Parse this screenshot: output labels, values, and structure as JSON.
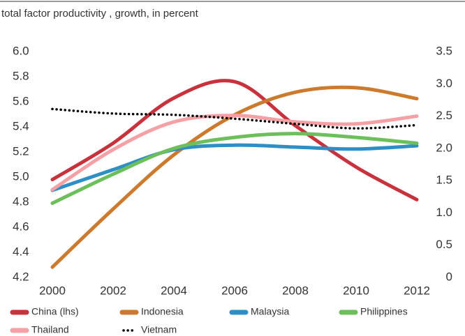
{
  "chart_data": {
    "type": "line",
    "subtitle": "total factor productivity , growth, in percent",
    "x": [
      2000,
      2002,
      2004,
      2006,
      2008,
      2010,
      2012
    ],
    "xlim": [
      2000,
      2012
    ],
    "xticks": [
      2000,
      2002,
      2004,
      2006,
      2008,
      2010,
      2012
    ],
    "ylim": [
      4.2,
      6.0
    ],
    "yticks": [
      {
        "value": 4.2,
        "label": "4.2"
      },
      {
        "value": 4.4,
        "label": "4.4"
      },
      {
        "value": 4.6,
        "label": "4.6"
      },
      {
        "value": 4.8,
        "label": "4.8"
      },
      {
        "value": 5.0,
        "label": "5.0"
      },
      {
        "value": 5.2,
        "label": "5.2"
      },
      {
        "value": 5.4,
        "label": "5.4"
      },
      {
        "value": 5.6,
        "label": "5.6"
      },
      {
        "value": 5.8,
        "label": "5.8"
      },
      {
        "value": 6.0,
        "label": "6.0"
      }
    ],
    "y2lim": [
      0,
      3.5
    ],
    "y2ticks": [
      0,
      {
        "value": 0.5,
        "label": "0.5"
      },
      {
        "value": 1.0,
        "label": "1.0"
      },
      {
        "value": 1.5,
        "label": "1.5"
      },
      {
        "value": 2.0,
        "label": "2.0"
      },
      {
        "value": 2.5,
        "label": "2.5"
      },
      {
        "value": 3.0,
        "label": "3.0"
      },
      {
        "value": 3.5,
        "label": "3.5"
      }
    ],
    "grid": false,
    "smooth": true,
    "series": [
      {
        "name": "China (lhs)",
        "color": "#c8323c",
        "values": [
          4.98,
          5.27,
          5.63,
          5.76,
          5.41,
          5.08,
          4.82
        ]
      },
      {
        "name": "Indonesia",
        "color": "#cc7a2e",
        "axis": "y2",
        "values": [
          0.16,
          1.06,
          1.9,
          2.52,
          2.87,
          2.94,
          2.77
        ]
      },
      {
        "name": "Malaysia",
        "color": "#2e8fc6",
        "axis": "y2",
        "values": [
          1.35,
          1.67,
          1.98,
          2.05,
          2.02,
          1.99,
          2.04
        ]
      },
      {
        "name": "Philippines",
        "color": "#6cbf5a",
        "axis": "y2",
        "values": [
          1.15,
          1.6,
          2.0,
          2.17,
          2.23,
          2.17,
          2.08
        ]
      },
      {
        "name": "Thailand",
        "color": "#f4a0a4",
        "axis": "y2",
        "values": [
          1.36,
          1.98,
          2.41,
          2.51,
          2.41,
          2.38,
          2.5
        ]
      },
      {
        "name": "Vietnam",
        "color": "#000000",
        "axis": "y2",
        "dash": "dotted",
        "values": [
          2.61,
          2.54,
          2.52,
          2.46,
          2.38,
          2.31,
          2.36
        ]
      }
    ]
  }
}
